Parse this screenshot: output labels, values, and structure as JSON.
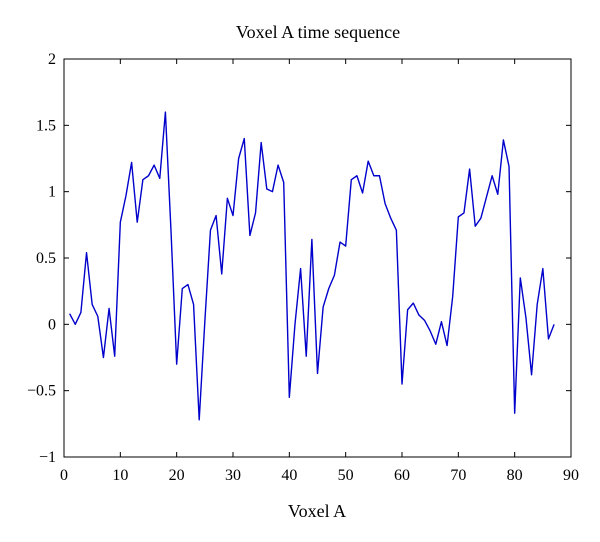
{
  "chart_data": {
    "type": "line",
    "title": "Voxel A time sequence",
    "xlabel": "Voxel A",
    "ylabel": "",
    "xlim": [
      0,
      90
    ],
    "ylim": [
      -1,
      2
    ],
    "xticks": [
      0,
      10,
      20,
      30,
      40,
      50,
      60,
      70,
      80,
      90
    ],
    "yticks": [
      -1,
      -0.5,
      0,
      0.5,
      1,
      1.5,
      2
    ],
    "xtick_labels": [
      "0",
      "10",
      "20",
      "30",
      "40",
      "50",
      "60",
      "70",
      "80",
      "90"
    ],
    "ytick_labels": [
      "−1",
      "−0.5",
      "0",
      "0.5",
      "1",
      "1.5",
      "2"
    ],
    "grid": false,
    "series": [
      {
        "color": "#0000cc",
        "x": [
          1,
          2,
          3,
          4,
          5,
          6,
          7,
          8,
          9,
          10,
          11,
          12,
          13,
          14,
          15,
          16,
          17,
          18,
          19,
          20,
          21,
          22,
          23,
          24,
          25,
          26,
          27,
          28,
          29,
          30,
          31,
          32,
          33,
          34,
          35,
          36,
          37,
          38,
          39,
          40,
          41,
          42,
          43,
          44,
          45,
          46,
          47,
          48,
          49,
          50,
          51,
          52,
          53,
          54,
          55,
          56,
          57,
          58,
          59,
          60,
          61,
          62,
          63,
          64,
          65,
          66,
          67,
          68,
          69,
          70,
          71,
          72,
          73,
          74,
          75,
          76,
          77,
          78,
          79,
          80,
          81,
          82,
          83,
          84,
          85,
          86,
          87
        ],
        "y": [
          0.08,
          0.0,
          0.09,
          0.54,
          0.15,
          0.06,
          -0.25,
          0.12,
          -0.24,
          0.77,
          0.97,
          1.22,
          0.77,
          1.09,
          1.12,
          1.2,
          1.1,
          1.6,
          0.7,
          -0.3,
          0.27,
          0.3,
          0.15,
          -0.72,
          0.02,
          0.71,
          0.82,
          0.38,
          0.95,
          0.82,
          1.25,
          1.4,
          0.67,
          0.84,
          1.37,
          1.02,
          1.0,
          1.2,
          1.07,
          -0.55,
          0.0,
          0.42,
          -0.24,
          0.64,
          -0.37,
          0.13,
          0.27,
          0.37,
          0.62,
          0.59,
          1.09,
          1.12,
          0.99,
          1.23,
          1.12,
          1.12,
          0.91,
          0.8,
          0.71,
          -0.45,
          0.11,
          0.16,
          0.07,
          0.03,
          -0.05,
          -0.15,
          0.02,
          -0.16,
          0.21,
          0.81,
          0.84,
          1.17,
          0.74,
          0.8,
          0.96,
          1.12,
          0.98,
          1.39,
          1.19,
          -0.67,
          0.35,
          0.05,
          -0.38,
          0.15,
          0.42,
          -0.11,
          0.0
        ]
      }
    ]
  }
}
